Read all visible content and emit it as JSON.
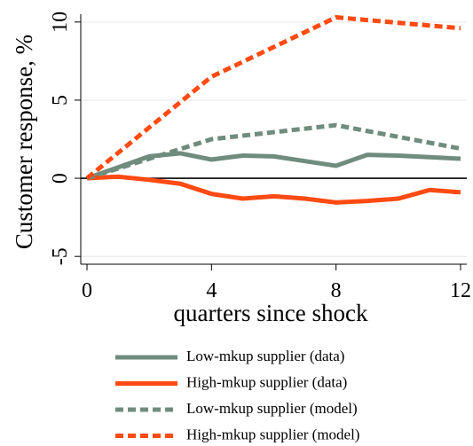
{
  "chart_data": {
    "type": "line",
    "ylabel": "Customer response, %",
    "xlabel": "quarters since shock",
    "xlim": [
      -0.2,
      12.2
    ],
    "xticks": [
      0,
      4,
      8,
      12
    ],
    "ylim": [
      -5.5,
      10.5
    ],
    "yticks": [
      -5,
      0,
      5,
      10
    ],
    "grid": true,
    "hline": 0,
    "legend": "bottom",
    "series": [
      {
        "name": "Low-mkup supplier (data)",
        "color": "#6f8c7e",
        "dash": false,
        "x": [
          0,
          1,
          2,
          3,
          4,
          5,
          6,
          7,
          8,
          9,
          10,
          11,
          12
        ],
        "values": [
          0,
          0.7,
          1.4,
          1.6,
          1.2,
          1.45,
          1.4,
          1.1,
          0.8,
          1.5,
          1.45,
          1.35,
          1.25
        ]
      },
      {
        "name": "High-mkup supplier (data)",
        "color": "#ff4a12",
        "dash": false,
        "x": [
          0,
          1,
          2,
          3,
          4,
          5,
          6,
          7,
          8,
          9,
          10,
          11,
          12
        ],
        "values": [
          0,
          0.1,
          -0.1,
          -0.35,
          -1.0,
          -1.3,
          -1.15,
          -1.3,
          -1.55,
          -1.45,
          -1.3,
          -0.75,
          -0.9
        ]
      },
      {
        "name": "Low-mkup supplier (model)",
        "color": "#6f8c7e",
        "dash": true,
        "x": [
          0,
          4,
          8,
          12
        ],
        "values": [
          0,
          2.5,
          3.4,
          1.9
        ]
      },
      {
        "name": "High-mkup supplier (model)",
        "color": "#ff4a12",
        "dash": true,
        "x": [
          0,
          4,
          8,
          12
        ],
        "values": [
          0,
          6.5,
          10.3,
          9.6
        ]
      }
    ]
  }
}
